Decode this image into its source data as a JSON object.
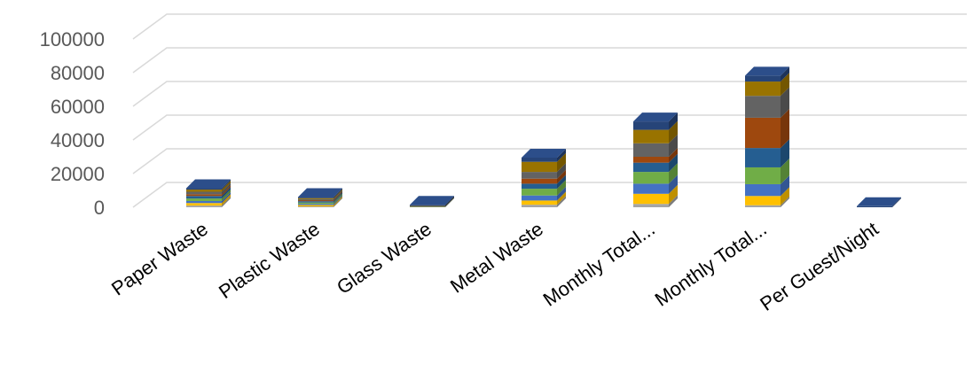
{
  "chart_data": {
    "type": "bar",
    "stacked": true,
    "three_d": true,
    "grid": true,
    "legend": "none",
    "title": "",
    "xlabel": "",
    "ylabel": "",
    "ylim": [
      0,
      100000
    ],
    "yticks": [
      "0",
      "20000",
      "40000",
      "60000",
      "80000",
      "100000"
    ],
    "categories": [
      "Paper Waste",
      "Plastic Waste",
      "Glass Waste",
      "Metal Waste",
      "Monthly Total...",
      "Monthly Total...",
      "Per Guest/Night"
    ],
    "series": [
      {
        "color": "#a5a5a5",
        "values": [
          1000,
          500,
          100,
          1500,
          2000,
          1200,
          0
        ]
      },
      {
        "color": "#ffc000",
        "values": [
          1500,
          800,
          100,
          2500,
          6000,
          5500,
          0
        ]
      },
      {
        "color": "#4472c4",
        "values": [
          1200,
          700,
          100,
          3000,
          6000,
          7000,
          0
        ]
      },
      {
        "color": "#70ad47",
        "values": [
          1500,
          800,
          100,
          4000,
          7000,
          10000,
          0
        ]
      },
      {
        "color": "#255e91",
        "values": [
          1500,
          800,
          100,
          3000,
          5500,
          11500,
          0
        ]
      },
      {
        "color": "#9e480e",
        "values": [
          1000,
          500,
          100,
          3000,
          3500,
          18000,
          0
        ]
      },
      {
        "color": "#636363",
        "values": [
          1500,
          700,
          100,
          4000,
          8000,
          13000,
          0
        ]
      },
      {
        "color": "#997300",
        "values": [
          1300,
          600,
          100,
          6000,
          8000,
          8500,
          0
        ]
      },
      {
        "color": "#264478",
        "values": [
          800,
          400,
          100,
          2500,
          5000,
          3500,
          100
        ]
      }
    ]
  }
}
